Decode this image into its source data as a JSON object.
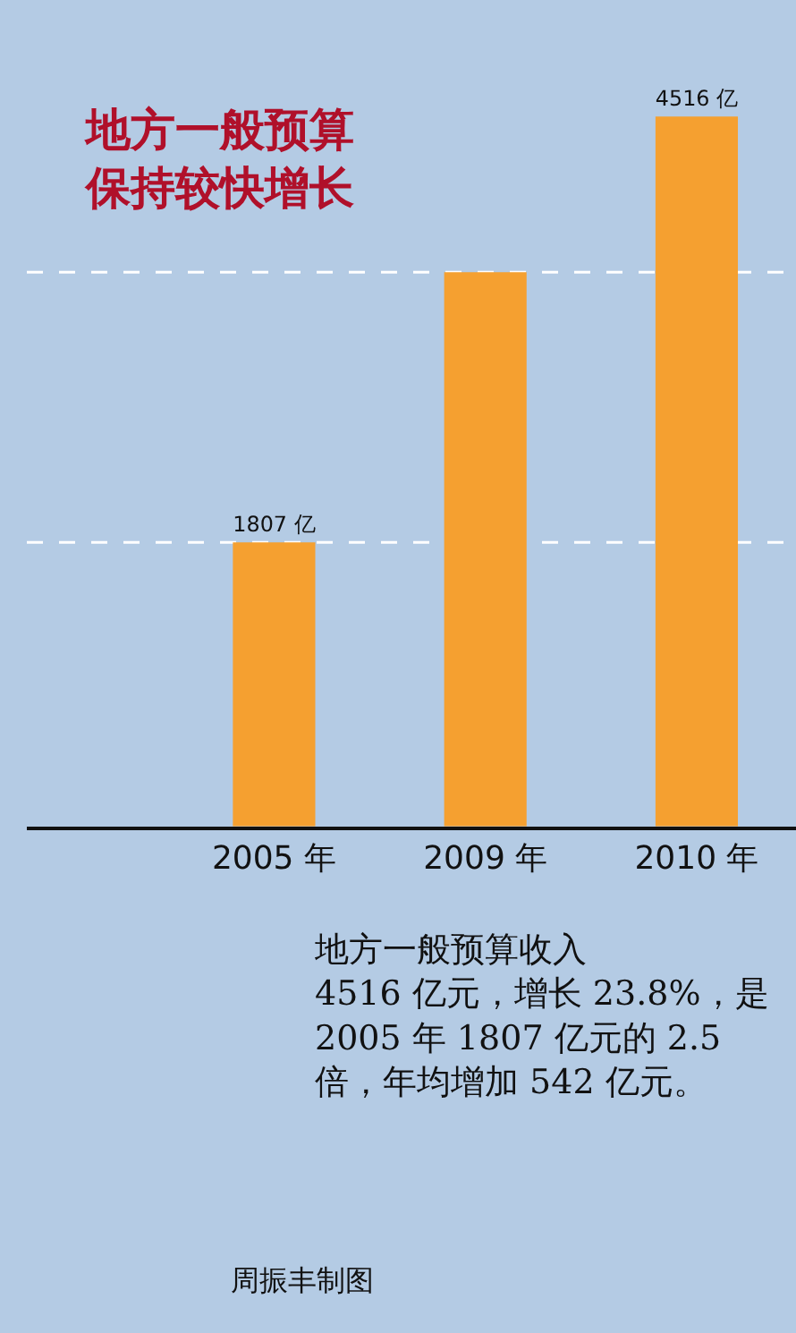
{
  "chart_data": {
    "type": "bar",
    "title": "地方一般预算保持较快增长",
    "categories": [
      "2005 年",
      "2009 年",
      "2010 年"
    ],
    "values": [
      1807,
      3526,
      4516
    ],
    "value_labels": [
      "1807 亿",
      null,
      "4516 亿"
    ],
    "color": "#f5a030",
    "ref_lines": [
      {
        "axis": "y",
        "value": 1807,
        "color": "#ffffff",
        "line_style": "dashed"
      },
      {
        "axis": "y",
        "value": 3526,
        "color": "#ffffff",
        "line_style": "dashed"
      }
    ],
    "annotations": [
      "地方一般预算收入\n4516 亿元，增长 23.8%，是\n2005 年 1807 亿元的 2.5\n倍，年均增加 542 亿元。",
      "周振丰制图"
    ],
    "grid": false,
    "legend": false
  }
}
